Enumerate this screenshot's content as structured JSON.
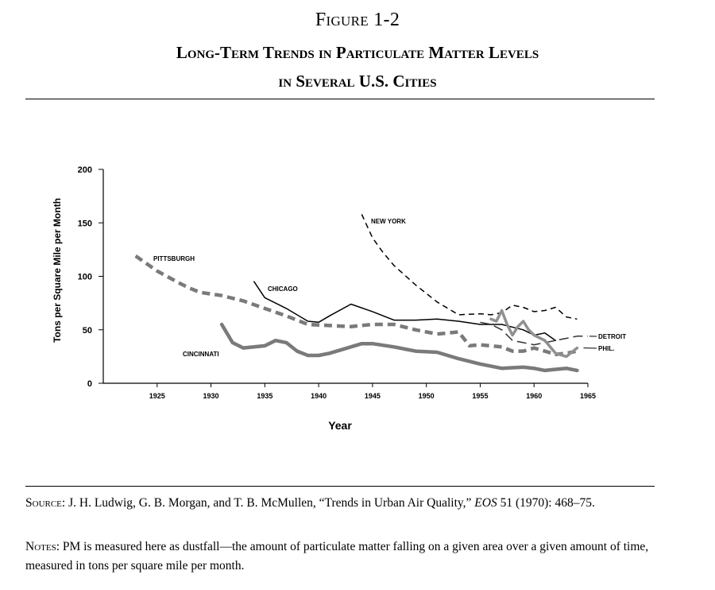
{
  "figure": {
    "label": "Figure 1-2",
    "title_line1": "Long-Term Trends in Particulate Matter Levels",
    "title_line2": "in Several U.S. Cities"
  },
  "chart_data": {
    "type": "line",
    "title": "",
    "xlabel": "Year",
    "ylabel": "Tons per Square Mile per Month",
    "xlim": [
      1920,
      1965
    ],
    "ylim": [
      0,
      200
    ],
    "x_ticks": [
      1925,
      1930,
      1935,
      1940,
      1945,
      1950,
      1955,
      1960,
      1965
    ],
    "y_ticks": [
      0,
      50,
      100,
      150,
      200
    ],
    "grid": false,
    "legend": "inline labels",
    "series": [
      {
        "name": "PITTSBURGH",
        "style": "thick-dashed",
        "color": "#7a7a7a",
        "x": [
          1923,
          1925,
          1927,
          1928,
          1929,
          1931,
          1933,
          1935,
          1937,
          1939,
          1941,
          1943,
          1945,
          1947,
          1949,
          1951,
          1953,
          1954,
          1955,
          1957,
          1958,
          1959,
          1960,
          1961,
          1962,
          1963,
          1964
        ],
        "y": [
          119,
          105,
          94,
          89,
          85,
          82,
          77,
          70,
          63,
          55,
          54,
          53,
          55,
          55,
          50,
          46,
          48,
          35,
          36,
          34,
          30,
          30,
          33,
          30,
          27,
          28,
          30
        ]
      },
      {
        "name": "CINCINNATI",
        "style": "thick-solid",
        "color": "#7a7a7a",
        "x": [
          1931,
          1932,
          1933,
          1935,
          1936,
          1937,
          1938,
          1939,
          1940,
          1941,
          1942,
          1944,
          1945,
          1947,
          1949,
          1951,
          1953,
          1955,
          1957,
          1959,
          1960,
          1961,
          1962,
          1963,
          1964
        ],
        "y": [
          55,
          38,
          33,
          35,
          40,
          38,
          30,
          26,
          26,
          28,
          31,
          37,
          37,
          34,
          30,
          29,
          23,
          18,
          14,
          15,
          14,
          12,
          13,
          14,
          12
        ]
      },
      {
        "name": "CHICAGO",
        "style": "thin-solid",
        "color": "#000000",
        "x": [
          1934,
          1935,
          1937,
          1939,
          1940,
          1941,
          1943,
          1945,
          1947,
          1949,
          1951,
          1953,
          1955,
          1957,
          1959,
          1960,
          1961,
          1962
        ],
        "y": [
          95,
          80,
          70,
          58,
          57,
          63,
          74,
          67,
          59,
          59,
          60,
          58,
          55,
          55,
          50,
          45,
          47,
          40
        ]
      },
      {
        "name": "NEW YORK",
        "style": "thin-dashed",
        "color": "#000000",
        "x": [
          1944,
          1945,
          1946,
          1947,
          1949,
          1951,
          1953,
          1955,
          1956,
          1957,
          1958,
          1959,
          1960,
          1961,
          1962,
          1963,
          1964
        ],
        "y": [
          158,
          136,
          122,
          110,
          92,
          76,
          64,
          65,
          64,
          66,
          73,
          71,
          67,
          68,
          71,
          62,
          60
        ]
      },
      {
        "name": "DETROIT",
        "style": "thin-long-dashed",
        "color": "#333333",
        "x": [
          1955,
          1956,
          1957,
          1958,
          1959,
          1960,
          1961,
          1962,
          1963,
          1964,
          1965
        ],
        "y": [
          57,
          55,
          50,
          40,
          38,
          36,
          38,
          40,
          42,
          44,
          44
        ]
      },
      {
        "name": "PHIL.",
        "style": "medium-solid",
        "color": "#909090",
        "x": [
          1956,
          1956.5,
          1957,
          1957.5,
          1958,
          1958.5,
          1959,
          1959.5,
          1960,
          1961,
          1962,
          1963,
          1964
        ],
        "y": [
          60,
          58,
          68,
          55,
          45,
          53,
          58,
          50,
          45,
          40,
          28,
          25,
          33
        ]
      }
    ]
  },
  "source": {
    "label": "Source:",
    "text_before_italic": "J. H. Ludwig, G. B. Morgan, and T. B. McMullen, “Trends in Urban Air Quality,”",
    "italic": "EOS",
    "text_after_italic": "51 (1970): 468–75."
  },
  "notes": {
    "label": "Notes:",
    "text": "PM is measured here as dustfall—the amount of particulate matter falling on a given area over a given amount of time, measured in tons per square mile per month."
  }
}
